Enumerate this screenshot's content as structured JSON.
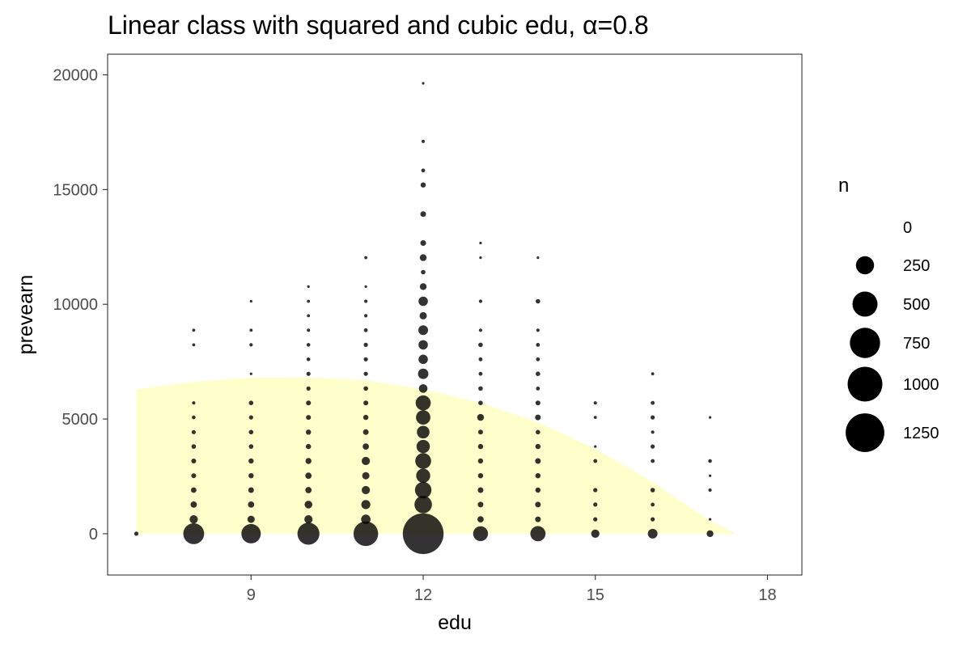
{
  "chart_data": {
    "type": "scatter",
    "title": "Linear class with squared and cubic edu, α=0.8",
    "xlabel": "edu",
    "ylabel": "prevearn",
    "xlim": [
      6.5,
      18.6
    ],
    "ylim": [
      -1800,
      20900
    ],
    "xticks": [
      9,
      12,
      15,
      18
    ],
    "yticks": [
      0,
      5000,
      10000,
      15000,
      20000
    ],
    "grid": false,
    "point_color": "#000000",
    "band": {
      "color": "#ffffcc",
      "x": [
        7,
        8,
        9,
        10,
        11,
        12,
        13,
        14,
        15,
        16,
        17,
        17.45
      ],
      "upper": [
        6300,
        6620,
        6800,
        6820,
        6680,
        6300,
        5700,
        4850,
        3700,
        2250,
        560,
        0
      ],
      "lower": [
        0,
        0,
        0,
        0,
        0,
        0,
        0,
        0,
        0,
        0,
        0,
        0
      ]
    },
    "legend": {
      "title": "n",
      "position": "right",
      "entries": [
        {
          "label": "0",
          "value": 0
        },
        {
          "label": "250",
          "value": 250
        },
        {
          "label": "500",
          "value": 500
        },
        {
          "label": "750",
          "value": 750
        },
        {
          "label": "1000",
          "value": 1000
        },
        {
          "label": "1250",
          "value": 1250
        }
      ]
    },
    "points": [
      {
        "x": 7,
        "y": 0,
        "n": 6
      },
      {
        "x": 8,
        "y": 0,
        "n": 340
      },
      {
        "x": 8,
        "y": 630,
        "n": 40
      },
      {
        "x": 8,
        "y": 1270,
        "n": 20
      },
      {
        "x": 8,
        "y": 1900,
        "n": 14
      },
      {
        "x": 8,
        "y": 2530,
        "n": 10
      },
      {
        "x": 8,
        "y": 3170,
        "n": 10
      },
      {
        "x": 8,
        "y": 3800,
        "n": 8
      },
      {
        "x": 8,
        "y": 4430,
        "n": 6
      },
      {
        "x": 8,
        "y": 5070,
        "n": 4
      },
      {
        "x": 8,
        "y": 5700,
        "n": 3
      },
      {
        "x": 8,
        "y": 8230,
        "n": 2
      },
      {
        "x": 8,
        "y": 8870,
        "n": 2
      },
      {
        "x": 9,
        "y": 0,
        "n": 290
      },
      {
        "x": 9,
        "y": 630,
        "n": 30
      },
      {
        "x": 9,
        "y": 1270,
        "n": 20
      },
      {
        "x": 9,
        "y": 1900,
        "n": 15
      },
      {
        "x": 9,
        "y": 2530,
        "n": 12
      },
      {
        "x": 9,
        "y": 3170,
        "n": 12
      },
      {
        "x": 9,
        "y": 3800,
        "n": 8
      },
      {
        "x": 9,
        "y": 4430,
        "n": 8
      },
      {
        "x": 9,
        "y": 5070,
        "n": 6
      },
      {
        "x": 9,
        "y": 5700,
        "n": 8
      },
      {
        "x": 9,
        "y": 6970,
        "n": 1
      },
      {
        "x": 9,
        "y": 8230,
        "n": 3
      },
      {
        "x": 9,
        "y": 8870,
        "n": 2
      },
      {
        "x": 9,
        "y": 10130,
        "n": 1
      },
      {
        "x": 10,
        "y": 0,
        "n": 380
      },
      {
        "x": 10,
        "y": 630,
        "n": 40
      },
      {
        "x": 10,
        "y": 1270,
        "n": 35
      },
      {
        "x": 10,
        "y": 1900,
        "n": 20
      },
      {
        "x": 10,
        "y": 2530,
        "n": 20
      },
      {
        "x": 10,
        "y": 3170,
        "n": 18
      },
      {
        "x": 10,
        "y": 3800,
        "n": 12
      },
      {
        "x": 10,
        "y": 4430,
        "n": 12
      },
      {
        "x": 10,
        "y": 5070,
        "n": 10
      },
      {
        "x": 10,
        "y": 5700,
        "n": 10
      },
      {
        "x": 10,
        "y": 6330,
        "n": 6
      },
      {
        "x": 10,
        "y": 6970,
        "n": 6
      },
      {
        "x": 10,
        "y": 7600,
        "n": 4
      },
      {
        "x": 10,
        "y": 8230,
        "n": 4
      },
      {
        "x": 10,
        "y": 8870,
        "n": 3
      },
      {
        "x": 10,
        "y": 9500,
        "n": 2
      },
      {
        "x": 10,
        "y": 10130,
        "n": 2
      },
      {
        "x": 10,
        "y": 10770,
        "n": 1
      },
      {
        "x": 11,
        "y": 0,
        "n": 480
      },
      {
        "x": 11,
        "y": 630,
        "n": 55
      },
      {
        "x": 11,
        "y": 1270,
        "n": 50
      },
      {
        "x": 11,
        "y": 1900,
        "n": 40
      },
      {
        "x": 11,
        "y": 2530,
        "n": 30
      },
      {
        "x": 11,
        "y": 3170,
        "n": 40
      },
      {
        "x": 11,
        "y": 3800,
        "n": 20
      },
      {
        "x": 11,
        "y": 4430,
        "n": 15
      },
      {
        "x": 11,
        "y": 5070,
        "n": 12
      },
      {
        "x": 11,
        "y": 5700,
        "n": 10
      },
      {
        "x": 11,
        "y": 6330,
        "n": 8
      },
      {
        "x": 11,
        "y": 6970,
        "n": 6
      },
      {
        "x": 11,
        "y": 7600,
        "n": 6
      },
      {
        "x": 11,
        "y": 8230,
        "n": 6
      },
      {
        "x": 11,
        "y": 8870,
        "n": 5
      },
      {
        "x": 11,
        "y": 9500,
        "n": 3
      },
      {
        "x": 11,
        "y": 10130,
        "n": 3
      },
      {
        "x": 11,
        "y": 10770,
        "n": 1
      },
      {
        "x": 11,
        "y": 12030,
        "n": 2
      },
      {
        "x": 12,
        "y": 0,
        "n": 1390
      },
      {
        "x": 12,
        "y": 1270,
        "n": 230
      },
      {
        "x": 12,
        "y": 1900,
        "n": 200
      },
      {
        "x": 12,
        "y": 2530,
        "n": 140
      },
      {
        "x": 12,
        "y": 3170,
        "n": 185
      },
      {
        "x": 12,
        "y": 3800,
        "n": 125
      },
      {
        "x": 12,
        "y": 4430,
        "n": 110
      },
      {
        "x": 12,
        "y": 5070,
        "n": 150
      },
      {
        "x": 12,
        "y": 5700,
        "n": 165
      },
      {
        "x": 12,
        "y": 6330,
        "n": 45
      },
      {
        "x": 12,
        "y": 6970,
        "n": 70
      },
      {
        "x": 12,
        "y": 7600,
        "n": 55
      },
      {
        "x": 12,
        "y": 8230,
        "n": 55
      },
      {
        "x": 12,
        "y": 8870,
        "n": 60
      },
      {
        "x": 12,
        "y": 9500,
        "n": 30
      },
      {
        "x": 12,
        "y": 10130,
        "n": 55
      },
      {
        "x": 12,
        "y": 10770,
        "n": 25
      },
      {
        "x": 12,
        "y": 11400,
        "n": 8
      },
      {
        "x": 12,
        "y": 12030,
        "n": 25
      },
      {
        "x": 12,
        "y": 12670,
        "n": 15
      },
      {
        "x": 12,
        "y": 13930,
        "n": 15
      },
      {
        "x": 12,
        "y": 15200,
        "n": 12
      },
      {
        "x": 12,
        "y": 15830,
        "n": 5
      },
      {
        "x": 12,
        "y": 17100,
        "n": 3
      },
      {
        "x": 12,
        "y": 19630,
        "n": 1
      },
      {
        "x": 13,
        "y": 0,
        "n": 160
      },
      {
        "x": 13,
        "y": 630,
        "n": 20
      },
      {
        "x": 13,
        "y": 1270,
        "n": 15
      },
      {
        "x": 13,
        "y": 1900,
        "n": 15
      },
      {
        "x": 13,
        "y": 2530,
        "n": 12
      },
      {
        "x": 13,
        "y": 3170,
        "n": 12
      },
      {
        "x": 13,
        "y": 3800,
        "n": 12
      },
      {
        "x": 13,
        "y": 4430,
        "n": 10
      },
      {
        "x": 13,
        "y": 5070,
        "n": 25
      },
      {
        "x": 13,
        "y": 5700,
        "n": 8
      },
      {
        "x": 13,
        "y": 6330,
        "n": 8
      },
      {
        "x": 13,
        "y": 6970,
        "n": 5
      },
      {
        "x": 13,
        "y": 7600,
        "n": 5
      },
      {
        "x": 13,
        "y": 8230,
        "n": 8
      },
      {
        "x": 13,
        "y": 8870,
        "n": 3
      },
      {
        "x": 13,
        "y": 10130,
        "n": 3
      },
      {
        "x": 13,
        "y": 12030,
        "n": 1
      },
      {
        "x": 13,
        "y": 12670,
        "n": 1
      },
      {
        "x": 14,
        "y": 0,
        "n": 170
      },
      {
        "x": 14,
        "y": 630,
        "n": 15
      },
      {
        "x": 14,
        "y": 1270,
        "n": 15
      },
      {
        "x": 14,
        "y": 1900,
        "n": 12
      },
      {
        "x": 14,
        "y": 2530,
        "n": 12
      },
      {
        "x": 14,
        "y": 3170,
        "n": 15
      },
      {
        "x": 14,
        "y": 3800,
        "n": 12
      },
      {
        "x": 14,
        "y": 4430,
        "n": 8
      },
      {
        "x": 14,
        "y": 5070,
        "n": 15
      },
      {
        "x": 14,
        "y": 5700,
        "n": 10
      },
      {
        "x": 14,
        "y": 6330,
        "n": 5
      },
      {
        "x": 14,
        "y": 6970,
        "n": 8
      },
      {
        "x": 14,
        "y": 7600,
        "n": 5
      },
      {
        "x": 14,
        "y": 8230,
        "n": 5
      },
      {
        "x": 14,
        "y": 8870,
        "n": 3
      },
      {
        "x": 14,
        "y": 10130,
        "n": 8
      },
      {
        "x": 14,
        "y": 12030,
        "n": 1
      },
      {
        "x": 15,
        "y": 0,
        "n": 40
      },
      {
        "x": 15,
        "y": 630,
        "n": 6
      },
      {
        "x": 15,
        "y": 1270,
        "n": 6
      },
      {
        "x": 15,
        "y": 1900,
        "n": 6
      },
      {
        "x": 15,
        "y": 3170,
        "n": 5
      },
      {
        "x": 15,
        "y": 3800,
        "n": 1
      },
      {
        "x": 15,
        "y": 5070,
        "n": 2
      },
      {
        "x": 15,
        "y": 5700,
        "n": 3
      },
      {
        "x": 16,
        "y": 0,
        "n": 60
      },
      {
        "x": 16,
        "y": 630,
        "n": 6
      },
      {
        "x": 16,
        "y": 1270,
        "n": 5
      },
      {
        "x": 16,
        "y": 1900,
        "n": 8
      },
      {
        "x": 16,
        "y": 3170,
        "n": 5
      },
      {
        "x": 16,
        "y": 3800,
        "n": 6
      },
      {
        "x": 16,
        "y": 4430,
        "n": 3
      },
      {
        "x": 16,
        "y": 5070,
        "n": 6
      },
      {
        "x": 16,
        "y": 5700,
        "n": 5
      },
      {
        "x": 16,
        "y": 6970,
        "n": 2
      },
      {
        "x": 17,
        "y": 0,
        "n": 25
      },
      {
        "x": 17,
        "y": 630,
        "n": 1
      },
      {
        "x": 17,
        "y": 1900,
        "n": 3
      },
      {
        "x": 17,
        "y": 2530,
        "n": 1
      },
      {
        "x": 17,
        "y": 3170,
        "n": 4
      },
      {
        "x": 17,
        "y": 5070,
        "n": 1
      }
    ]
  }
}
